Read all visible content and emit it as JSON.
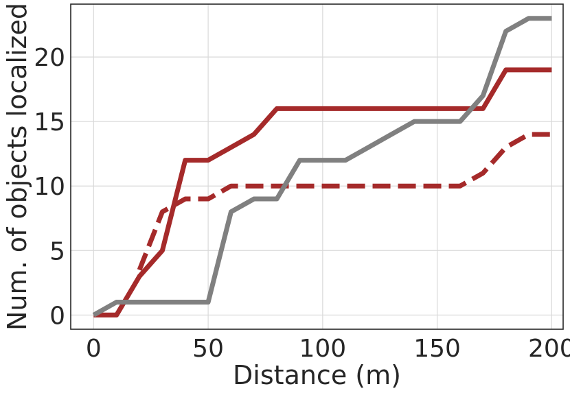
{
  "chart_data": {
    "type": "line",
    "title": "",
    "xlabel": "Distance (m)",
    "ylabel": "Num. of objects localized",
    "xlim": [
      -10,
      205
    ],
    "ylim": [
      -1.1,
      24.1
    ],
    "xticks": [
      0,
      50,
      100,
      150,
      200
    ],
    "yticks": [
      0,
      5,
      10,
      15,
      20
    ],
    "grid": true,
    "legend": "none",
    "series": [
      {
        "color": "#a52a2a",
        "style": "solid",
        "x": [
          0,
          10,
          20,
          30,
          40,
          50,
          60,
          70,
          80,
          90,
          100,
          110,
          120,
          130,
          140,
          150,
          160,
          170,
          180,
          190,
          200
        ],
        "y": [
          0,
          0,
          3,
          5,
          12,
          12,
          13,
          14,
          16,
          16,
          16,
          16,
          16,
          16,
          16,
          16,
          16,
          16,
          19,
          19,
          19
        ]
      },
      {
        "color": "#a52a2a",
        "style": "dashed",
        "x": [
          20,
          30,
          40,
          50,
          60,
          70,
          80,
          90,
          100,
          110,
          120,
          130,
          140,
          150,
          160,
          170,
          180,
          190,
          200
        ],
        "y": [
          3.5,
          8,
          9,
          9,
          10,
          10,
          10,
          10,
          10,
          10,
          10,
          10,
          10,
          10,
          10,
          11,
          13,
          14,
          14
        ]
      },
      {
        "color": "#808080",
        "style": "solid",
        "x": [
          0,
          10,
          20,
          30,
          40,
          50,
          60,
          70,
          80,
          90,
          100,
          110,
          120,
          130,
          140,
          150,
          160,
          170,
          180,
          190,
          200
        ],
        "y": [
          0,
          1,
          1,
          1,
          1,
          1,
          8,
          9,
          9,
          12,
          12,
          12,
          13,
          14,
          15,
          15,
          15,
          17,
          22,
          23,
          23
        ]
      }
    ]
  }
}
